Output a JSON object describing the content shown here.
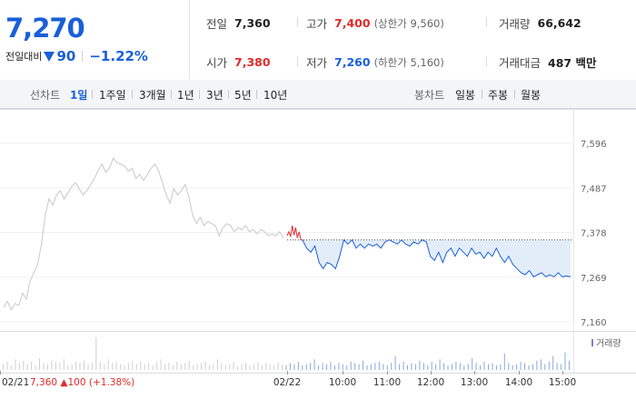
{
  "header": {
    "price": "7,270",
    "change_label": "전일대비",
    "change_amount": "90",
    "change_pct": "−1.22%",
    "stats": [
      {
        "label": "전일",
        "value": "7,360",
        "tone": "",
        "sub": ""
      },
      {
        "label": "고가",
        "value": "7,400",
        "tone": "up",
        "sub": "(상한가 9,560)"
      },
      {
        "label": "거래량",
        "value": "66,642",
        "tone": "",
        "sub": ""
      },
      {
        "label": "시가",
        "value": "7,380",
        "tone": "up",
        "sub": ""
      },
      {
        "label": "저가",
        "value": "7,260",
        "tone": "down",
        "sub": "(하한가 5,160)"
      },
      {
        "label": "거래대금",
        "value": "487 백만",
        "tone": "",
        "sub": ""
      }
    ]
  },
  "toolbar": {
    "line_label": "선차트",
    "line_options": [
      "1일",
      "1주일",
      "3개월",
      "1년",
      "3년",
      "5년",
      "10년"
    ],
    "line_active": 0,
    "candle_label": "봉차트",
    "candle_options": [
      "일봉",
      "주봉",
      "월봉"
    ]
  },
  "chart_data": {
    "type": "line",
    "y_ticks": [
      "7,596",
      "7,487",
      "7,378",
      "7,269",
      "7,160"
    ],
    "y_tick_values": [
      7596,
      7487,
      7378,
      7269,
      7160
    ],
    "ylim": [
      7160,
      7596
    ],
    "reference_line": 7360,
    "x_tick_labels": [
      "02/21",
      "02/22",
      "10:00",
      "11:00",
      "12:00",
      "13:00",
      "14:00",
      "15:00"
    ],
    "prev_day_note": {
      "date": "02/21",
      "close": "7,360",
      "change": "100",
      "pct": "(+1.38%)"
    },
    "volume_legend": "거래량",
    "colors": {
      "prev_day": "#c8c8c8",
      "up": "#e12a2a",
      "down": "#1a5fd8",
      "fill": "#e3edfa"
    },
    "series": [
      {
        "values": [
          7195,
          7210,
          7190,
          7205,
          7200,
          7230,
          7215,
          7260,
          7280,
          7300,
          7350,
          7420,
          7460,
          7445,
          7470,
          7480,
          7460,
          7475,
          7490,
          7500,
          7485,
          7470,
          7480,
          7495,
          7510,
          7530,
          7545,
          7525,
          7535,
          7560,
          7548,
          7545,
          7540,
          7528,
          7535,
          7510,
          7520,
          7505,
          7520,
          7535,
          7545,
          7528,
          7500,
          7470,
          7450,
          7485,
          7470,
          7480,
          7495,
          7465,
          7420,
          7400,
          7415,
          7395,
          7405,
          7400,
          7395,
          7370,
          7390,
          7400,
          7395,
          7380,
          7390,
          7385,
          7395,
          7380,
          7385,
          7375,
          7385,
          7380,
          7370,
          7375,
          7370,
          7380,
          7365
        ]
      },
      {
        "values": [
          7370,
          7380,
          7368,
          7395,
          7372,
          7390,
          7365,
          7380,
          7360,
          7360
        ]
      },
      {
        "values": [
          7360,
          7340,
          7330,
          7345,
          7305,
          7290,
          7305,
          7300,
          7290,
          7320,
          7360,
          7350,
          7360,
          7340,
          7350,
          7340,
          7350,
          7345,
          7350,
          7340,
          7355,
          7360,
          7355,
          7350,
          7360,
          7350,
          7345,
          7355,
          7350,
          7360,
          7355,
          7320,
          7310,
          7330,
          7305,
          7330,
          7340,
          7320,
          7340,
          7330,
          7320,
          7340,
          7325,
          7330,
          7315,
          7330,
          7320,
          7340,
          7320,
          7305,
          7320,
          7300,
          7290,
          7280,
          7275,
          7285,
          7270,
          7275,
          7280,
          7270,
          7275,
          7270,
          7280,
          7270,
          7272,
          7270
        ]
      }
    ],
    "volume": [
      5,
      7,
      4,
      9,
      6,
      8,
      5,
      7,
      4,
      10,
      6,
      5,
      8,
      7,
      6,
      9,
      4,
      5,
      7,
      6,
      8,
      5,
      6,
      28,
      7,
      5,
      9,
      6,
      7,
      5,
      4,
      6,
      8,
      5,
      7,
      5,
      6,
      4,
      7,
      9,
      5,
      6,
      4,
      7,
      5,
      6,
      8,
      4,
      5,
      6,
      7,
      4,
      5,
      9,
      6,
      4,
      5,
      7,
      3,
      5,
      6,
      4,
      5,
      7,
      4,
      6,
      5,
      4,
      6,
      5,
      4,
      6,
      5,
      7,
      4,
      5,
      6,
      9,
      4,
      6,
      5,
      7,
      4,
      6,
      5,
      4,
      7,
      6,
      5,
      8,
      4,
      5,
      6,
      7,
      5,
      4,
      6,
      12,
      5,
      7,
      4,
      6,
      5,
      8,
      6,
      4,
      7,
      5,
      9,
      6,
      4,
      5,
      7,
      6,
      4,
      5,
      10,
      6,
      4,
      7,
      5,
      6,
      4,
      5,
      14,
      6,
      4,
      5,
      7,
      6,
      4,
      5,
      8,
      9,
      5,
      7,
      12,
      6,
      5,
      15,
      8
    ]
  }
}
